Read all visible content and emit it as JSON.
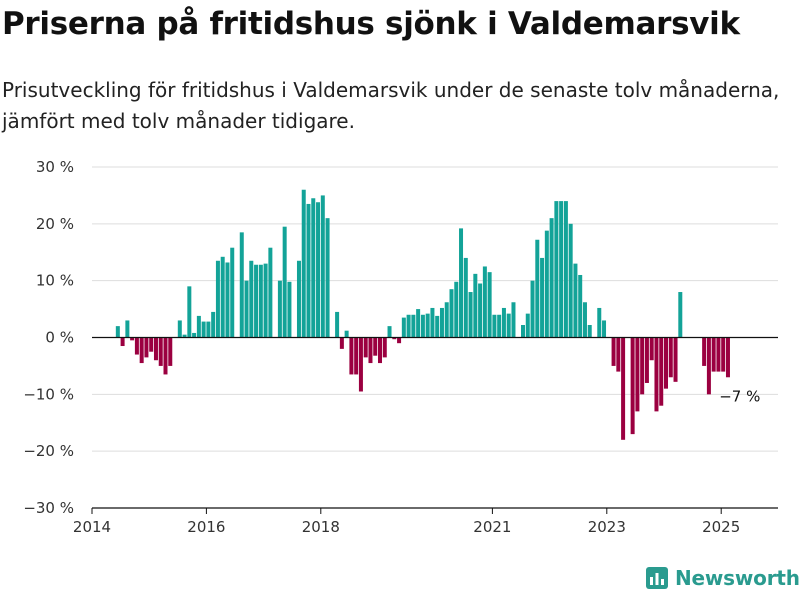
{
  "title": "Priserna på fritidshus sjönk i Valdemarsvik",
  "subtitle": "Prisutveckling för fritidshus i Valdemarsvik under de senaste tolv månaderna, jämfört med tolv månader tidigare.",
  "brand": "Newsworthy",
  "colors": {
    "positive": "#13a398",
    "negative": "#9b0040",
    "grid": "#dddddd",
    "axis": "#111111",
    "brand": "#2a9b8f"
  },
  "chart_data": {
    "type": "bar",
    "title": "",
    "xlabel": "",
    "ylabel": "",
    "ylim": [
      -30,
      30
    ],
    "y_ticks": [
      30,
      20,
      10,
      0,
      -10,
      -20,
      -30
    ],
    "y_tick_labels": [
      "30 %",
      "20 %",
      "10 %",
      "0 %",
      "−10 %",
      "−20 %",
      "−30 %"
    ],
    "x_ticks": [
      2014,
      2016,
      2018,
      2021,
      2023,
      2025
    ],
    "x_range": [
      "2014-01",
      "2025-08"
    ],
    "grid": true,
    "legend": "none",
    "annotation": {
      "text": "−7 %",
      "x": "2025-01",
      "y": -7
    },
    "series": [
      {
        "values": [
          {
            "x": "2014-06",
            "y": 2
          },
          {
            "x": "2014-07",
            "y": -1.5
          },
          {
            "x": "2014-08",
            "y": 3
          },
          {
            "x": "2014-09",
            "y": -0.5
          },
          {
            "x": "2014-10",
            "y": -3
          },
          {
            "x": "2014-11",
            "y": -4.5
          },
          {
            "x": "2014-12",
            "y": -3.5
          },
          {
            "x": "2015-01",
            "y": -2.5
          },
          {
            "x": "2015-02",
            "y": -4
          },
          {
            "x": "2015-03",
            "y": -5
          },
          {
            "x": "2015-04",
            "y": -6.5
          },
          {
            "x": "2015-05",
            "y": -5
          },
          {
            "x": "2015-07",
            "y": 3
          },
          {
            "x": "2015-08",
            "y": 0.5
          },
          {
            "x": "2015-09",
            "y": 9
          },
          {
            "x": "2015-10",
            "y": 0.8
          },
          {
            "x": "2015-11",
            "y": 3.8
          },
          {
            "x": "2015-12",
            "y": 2.8
          },
          {
            "x": "2016-01",
            "y": 2.8
          },
          {
            "x": "2016-02",
            "y": 4.5
          },
          {
            "x": "2016-03",
            "y": 13.5
          },
          {
            "x": "2016-04",
            "y": 14.2
          },
          {
            "x": "2016-05",
            "y": 13.2
          },
          {
            "x": "2016-06",
            "y": 15.8
          },
          {
            "x": "2016-08",
            "y": 18.5
          },
          {
            "x": "2016-09",
            "y": 10
          },
          {
            "x": "2016-10",
            "y": 13.5
          },
          {
            "x": "2016-11",
            "y": 12.8
          },
          {
            "x": "2016-12",
            "y": 12.8
          },
          {
            "x": "2017-01",
            "y": 13
          },
          {
            "x": "2017-02",
            "y": 15.8
          },
          {
            "x": "2017-04",
            "y": 10
          },
          {
            "x": "2017-05",
            "y": 19.5
          },
          {
            "x": "2017-06",
            "y": 9.8
          },
          {
            "x": "2017-08",
            "y": 13.5
          },
          {
            "x": "2017-09",
            "y": 26
          },
          {
            "x": "2017-10",
            "y": 23.5
          },
          {
            "x": "2017-11",
            "y": 24.5
          },
          {
            "x": "2017-12",
            "y": 23.8
          },
          {
            "x": "2018-01",
            "y": 25
          },
          {
            "x": "2018-02",
            "y": 21
          },
          {
            "x": "2018-04",
            "y": 4.5
          },
          {
            "x": "2018-05",
            "y": -2
          },
          {
            "x": "2018-06",
            "y": 1.2
          },
          {
            "x": "2018-07",
            "y": -6.5
          },
          {
            "x": "2018-08",
            "y": -6.5
          },
          {
            "x": "2018-09",
            "y": -9.5
          },
          {
            "x": "2018-10",
            "y": -3.5
          },
          {
            "x": "2018-11",
            "y": -4.5
          },
          {
            "x": "2018-12",
            "y": -3.2
          },
          {
            "x": "2019-01",
            "y": -4.5
          },
          {
            "x": "2019-02",
            "y": -3.5
          },
          {
            "x": "2019-03",
            "y": 2
          },
          {
            "x": "2019-04",
            "y": -0.3
          },
          {
            "x": "2019-05",
            "y": -1
          },
          {
            "x": "2019-06",
            "y": 3.5
          },
          {
            "x": "2019-07",
            "y": 4
          },
          {
            "x": "2019-08",
            "y": 4
          },
          {
            "x": "2019-09",
            "y": 5
          },
          {
            "x": "2019-10",
            "y": 4
          },
          {
            "x": "2019-11",
            "y": 4.2
          },
          {
            "x": "2019-12",
            "y": 5.2
          },
          {
            "x": "2020-01",
            "y": 3.8
          },
          {
            "x": "2020-02",
            "y": 5.2
          },
          {
            "x": "2020-03",
            "y": 6.2
          },
          {
            "x": "2020-04",
            "y": 8.5
          },
          {
            "x": "2020-05",
            "y": 9.8
          },
          {
            "x": "2020-06",
            "y": 19.2
          },
          {
            "x": "2020-07",
            "y": 14
          },
          {
            "x": "2020-08",
            "y": 8
          },
          {
            "x": "2020-09",
            "y": 11.2
          },
          {
            "x": "2020-10",
            "y": 9.5
          },
          {
            "x": "2020-11",
            "y": 12.5
          },
          {
            "x": "2020-12",
            "y": 11.5
          },
          {
            "x": "2021-01",
            "y": 4
          },
          {
            "x": "2021-02",
            "y": 4
          },
          {
            "x": "2021-03",
            "y": 5.2
          },
          {
            "x": "2021-04",
            "y": 4.2
          },
          {
            "x": "2021-05",
            "y": 6.2
          },
          {
            "x": "2021-07",
            "y": 2.2
          },
          {
            "x": "2021-08",
            "y": 4.2
          },
          {
            "x": "2021-09",
            "y": 10
          },
          {
            "x": "2021-10",
            "y": 17.2
          },
          {
            "x": "2021-11",
            "y": 14
          },
          {
            "x": "2021-12",
            "y": 18.8
          },
          {
            "x": "2022-01",
            "y": 21
          },
          {
            "x": "2022-02",
            "y": 24
          },
          {
            "x": "2022-03",
            "y": 24
          },
          {
            "x": "2022-04",
            "y": 24
          },
          {
            "x": "2022-05",
            "y": 20
          },
          {
            "x": "2022-06",
            "y": 13
          },
          {
            "x": "2022-07",
            "y": 11
          },
          {
            "x": "2022-08",
            "y": 6.2
          },
          {
            "x": "2022-09",
            "y": 2.2
          },
          {
            "x": "2022-11",
            "y": 5.2
          },
          {
            "x": "2022-12",
            "y": 3
          },
          {
            "x": "2023-02",
            "y": -5
          },
          {
            "x": "2023-03",
            "y": -6
          },
          {
            "x": "2023-04",
            "y": -18
          },
          {
            "x": "2023-06",
            "y": -17
          },
          {
            "x": "2023-07",
            "y": -13
          },
          {
            "x": "2023-08",
            "y": -10
          },
          {
            "x": "2023-09",
            "y": -8
          },
          {
            "x": "2023-10",
            "y": -4
          },
          {
            "x": "2023-11",
            "y": -13
          },
          {
            "x": "2023-12",
            "y": -12
          },
          {
            "x": "2024-01",
            "y": -9
          },
          {
            "x": "2024-02",
            "y": -7
          },
          {
            "x": "2024-03",
            "y": -7.8
          },
          {
            "x": "2024-04",
            "y": 8
          },
          {
            "x": "2024-09",
            "y": -5
          },
          {
            "x": "2024-10",
            "y": -10
          },
          {
            "x": "2024-11",
            "y": -6
          },
          {
            "x": "2024-12",
            "y": -6
          },
          {
            "x": "2025-01",
            "y": -6
          },
          {
            "x": "2025-02",
            "y": -7
          }
        ]
      }
    ]
  }
}
